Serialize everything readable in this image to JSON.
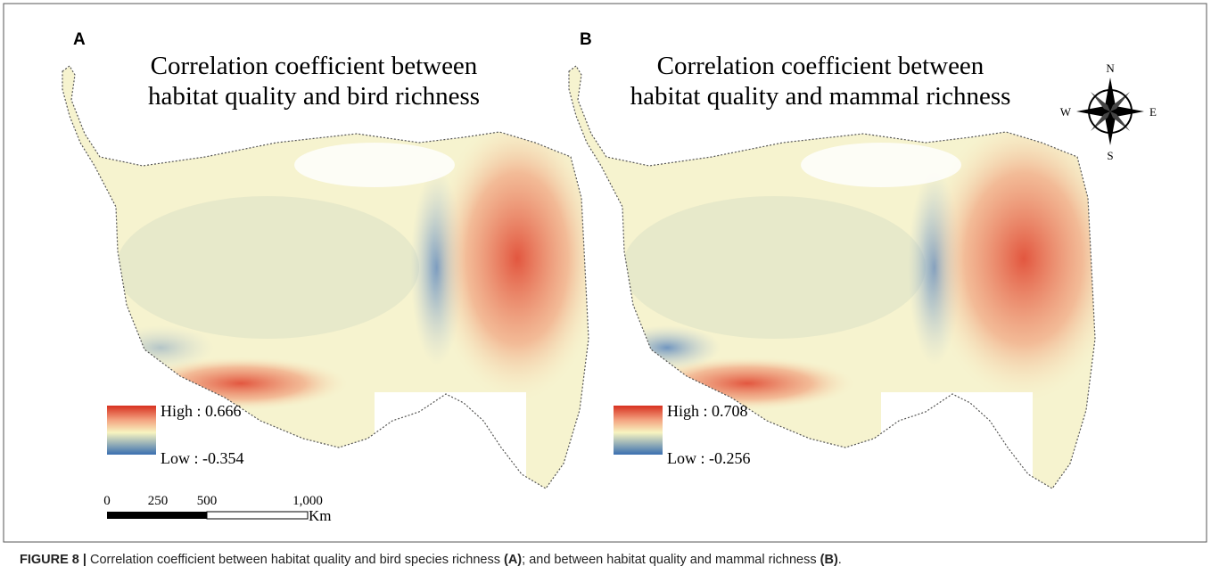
{
  "panels": [
    {
      "label": "A",
      "title": [
        "Correlation coefficient between",
        "habitat quality and bird richness"
      ],
      "legend": {
        "high": "High : 0.666",
        "low": "Low :  -0.354"
      }
    },
    {
      "label": "B",
      "title": [
        "Correlation coefficient between",
        "habitat quality and mammal richness"
      ],
      "legend": {
        "high": "High : 0.708",
        "low": "Low :  -0.256"
      }
    }
  ],
  "scale_bar": {
    "labels": [
      "0",
      "250",
      "500",
      "1,000"
    ],
    "unit": "Km"
  },
  "compass": {
    "n": "N",
    "s": "S",
    "e": "E",
    "w": "W"
  },
  "caption": {
    "figure": "FIGURE 8 |",
    "text1": " Correlation coefficient between habitat quality and bird species richness ",
    "ref_a": "(A)",
    "text2": "; and between habitat quality and mammal richness ",
    "ref_b": "(B)",
    "end": "."
  }
}
